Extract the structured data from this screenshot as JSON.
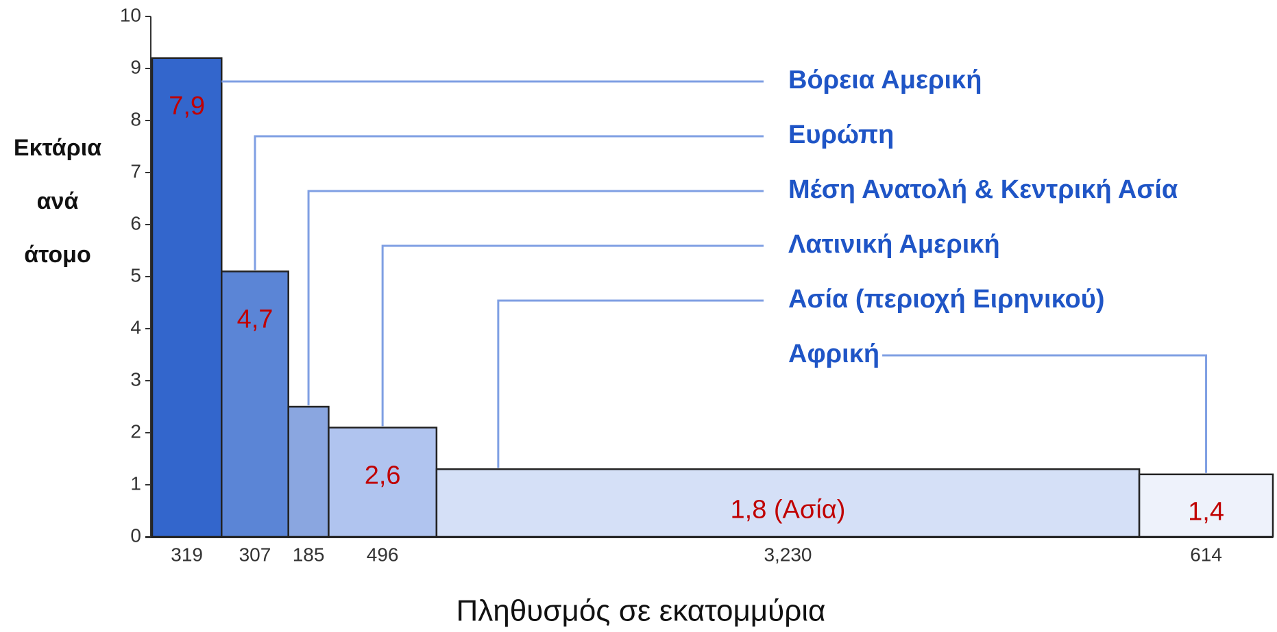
{
  "chart_data": {
    "type": "variable-width-bar",
    "ylabel_lines": [
      "Εκτάρια",
      "ανά",
      "άτομο"
    ],
    "xlabel": "Πληθυσμός σε εκατομμύρια",
    "categories": [
      "Βόρεια Αμερική",
      "Ευρώπη",
      "Μέση Ανατολή & Κεντρική Ασία",
      "Λατινική Αμερική",
      "Ασία (περιοχή Ειρηνικού)",
      "Αφρική"
    ],
    "values": [
      9.2,
      5.1,
      2.5,
      2.1,
      1.3,
      1.2
    ],
    "widths": [
      319,
      307,
      185,
      496,
      3230,
      614
    ],
    "width_labels": [
      "319",
      "307",
      "185",
      "496",
      "3,230",
      "614"
    ],
    "annotations": [
      "7,9",
      "4,7",
      null,
      "2,6",
      "1,8 (Ασία)",
      "1,4"
    ],
    "colors": [
      "#3366cc",
      "#5b85d6",
      "#8aa6e0",
      "#b0c4ef",
      "#d5e0f7",
      "#eef2fb"
    ],
    "ylim": [
      0,
      10
    ],
    "yticks": [
      0,
      1,
      2,
      3,
      4,
      5,
      6,
      7,
      8,
      9,
      10
    ]
  }
}
